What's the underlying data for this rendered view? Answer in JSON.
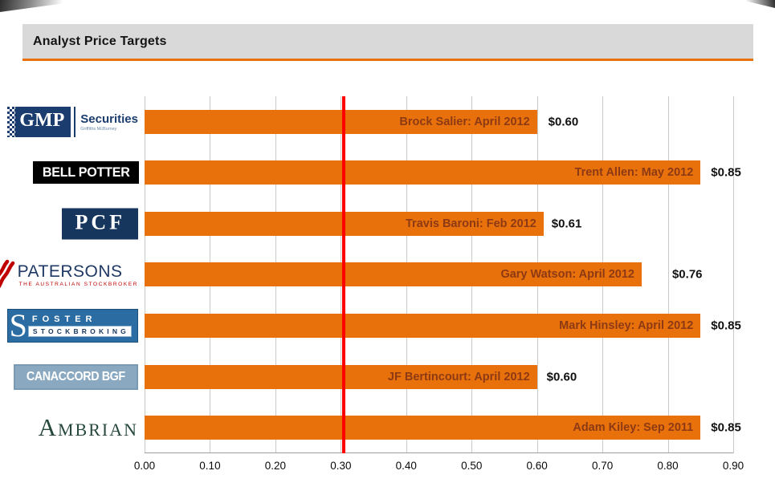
{
  "header": {
    "title": "Analyst Price Targets"
  },
  "chart_data": {
    "type": "bar",
    "orientation": "horizontal",
    "title": "Analyst Price Targets",
    "xlabel": "",
    "ylabel": "",
    "xlim": [
      0,
      0.9
    ],
    "x_ticks": [
      "0.00",
      "0.10",
      "0.20",
      "0.30",
      "0.40",
      "0.50",
      "0.60",
      "0.70",
      "0.80",
      "0.90"
    ],
    "grid": true,
    "bar_color": "#E8710C",
    "bar_label_color": "#8D3A14",
    "gridline_color": "#C9C9C9",
    "reference_line": {
      "value": 0.305,
      "color": "#FF0000"
    },
    "series": [
      {
        "firm": "GMP Securities",
        "label": "Brock Salier: April 2012",
        "value": 0.6,
        "value_label": "$0.60",
        "value_gap": 14
      },
      {
        "firm": "Bell Potter",
        "label": "Trent Allen: May 2012",
        "value": 0.85,
        "value_label": "$0.85",
        "value_gap": 13
      },
      {
        "firm": "PCF",
        "label": "Travis Baroni: Feb 2012",
        "value": 0.61,
        "value_label": "$0.61",
        "value_gap": 10
      },
      {
        "firm": "Patersons",
        "label": "Gary Watson: April 2012",
        "value": 0.76,
        "value_label": "$0.76",
        "value_gap": 38
      },
      {
        "firm": "Foster Stockbroking",
        "label": "Mark Hinsley: April 2012",
        "value": 0.85,
        "value_label": "$0.85",
        "value_gap": 13
      },
      {
        "firm": "Canaccord BGF",
        "label": "JF Bertincourt: April 2012",
        "value": 0.6,
        "value_label": "$0.60",
        "value_gap": 12
      },
      {
        "firm": "Ambrian",
        "label": "Adam Kiley: Sep 2011",
        "value": 0.85,
        "value_label": "$0.85",
        "value_gap": 13
      }
    ]
  },
  "logos": {
    "gmp": {
      "name": "GMP",
      "suffix": "Securities",
      "tagline": "Griffiths McBurney"
    },
    "bell_potter": {
      "text": "BELL POTTER"
    },
    "pcf": {
      "text": "PCF"
    },
    "patersons": {
      "name": "PATERSONS",
      "tagline": "THE AUSTRALIAN STOCKBROKER"
    },
    "foster": {
      "mark": "S",
      "line1": "FOSTER",
      "line2": "STOCKBROKING"
    },
    "canaccord": {
      "text": "CANACCORD BGF"
    },
    "ambrian": {
      "text": "Ambrian"
    }
  }
}
